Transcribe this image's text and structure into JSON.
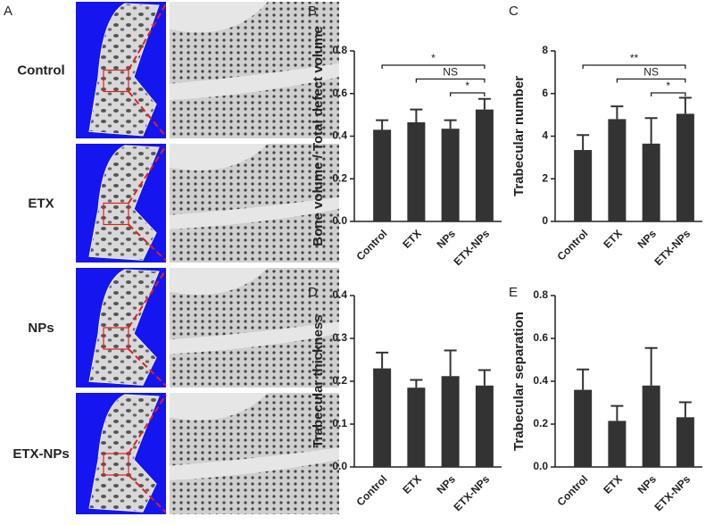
{
  "panel_a": {
    "label": "A",
    "rows": [
      "Control",
      "ETX",
      "NPs",
      "ETX-NPs"
    ]
  },
  "chart_data": [
    {
      "type": "bar",
      "panel_label": "B",
      "ylabel": "Bone volume / Total defect volume",
      "categories": [
        "Control",
        "ETX",
        "NPs",
        "ETX-NPs"
      ],
      "values": [
        0.43,
        0.465,
        0.435,
        0.525
      ],
      "errors": [
        0.045,
        0.06,
        0.04,
        0.05
      ],
      "color": "#333333",
      "ylim": [
        0,
        0.8
      ],
      "yticks": [
        {
          "value": 0,
          "label": "0.0"
        },
        0.2,
        0.4,
        0.6,
        0.8
      ],
      "annotations": [
        {
          "text": "*",
          "from": "Control",
          "to": "ETX-NPs"
        },
        {
          "text": "NS",
          "from": "ETX",
          "to": "ETX-NPs"
        },
        {
          "text": "*",
          "from": "NPs",
          "to": "ETX-NPs"
        }
      ]
    },
    {
      "type": "bar",
      "panel_label": "C",
      "ylabel": "Trabecular number",
      "categories": [
        "Control",
        "ETX",
        "NPs",
        "ETX-NPs"
      ],
      "values": [
        3.35,
        4.8,
        3.65,
        5.05
      ],
      "errors": [
        0.7,
        0.6,
        1.2,
        0.75
      ],
      "color": "#333333",
      "ylim": [
        0,
        8
      ],
      "yticks": [
        0,
        2,
        4,
        6,
        8
      ],
      "annotations": [
        {
          "text": "**",
          "from": "Control",
          "to": "ETX-NPs"
        },
        {
          "text": "NS",
          "from": "ETX",
          "to": "ETX-NPs"
        },
        {
          "text": "*",
          "from": "NPs",
          "to": "ETX-NPs"
        }
      ]
    },
    {
      "type": "bar",
      "panel_label": "D",
      "ylabel": "Trabecular thickness",
      "categories": [
        "Control",
        "ETX",
        "NPs",
        "ETX-NPs"
      ],
      "values": [
        0.23,
        0.185,
        0.212,
        0.19
      ],
      "errors": [
        0.037,
        0.018,
        0.06,
        0.036
      ],
      "color": "#333333",
      "ylim": [
        0,
        0.4
      ],
      "yticks": [
        {
          "value": 0,
          "label": "0.0"
        },
        0.1,
        0.2,
        0.3,
        0.4
      ]
    },
    {
      "type": "bar",
      "panel_label": "E",
      "ylabel": "Trabecular separation",
      "categories": [
        "Control",
        "ETX",
        "NPs",
        "ETX-NPs"
      ],
      "values": [
        0.36,
        0.215,
        0.38,
        0.232
      ],
      "errors": [
        0.095,
        0.07,
        0.175,
        0.07
      ],
      "color": "#333333",
      "ylim": [
        0,
        0.8
      ],
      "yticks": [
        {
          "value": 0,
          "label": "0.0"
        },
        0.2,
        0.4,
        0.6,
        0.8
      ]
    }
  ]
}
